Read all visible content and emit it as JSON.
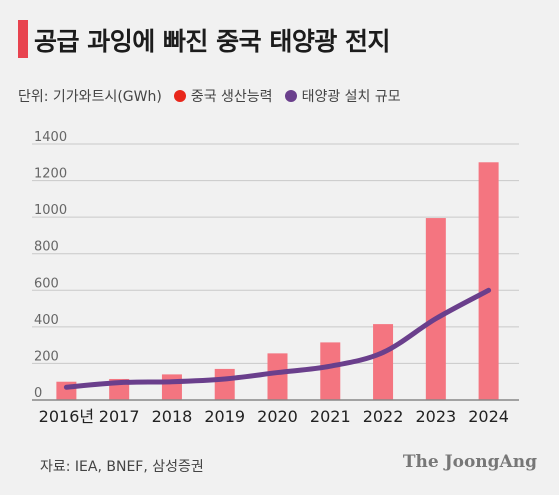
{
  "title": "공급 과잉에 빠진 중국 태양광 전지",
  "unit_label": "단위: 기가와트시(GWh)",
  "legend": [
    {
      "label": "중국 생산능력",
      "color": "#e8271b"
    },
    {
      "label": "태양광 설치 규모",
      "color": "#6a3f8c"
    }
  ],
  "source": "자료: IEA, BNEF, 삼성증권",
  "brand": "The JoongAng",
  "colors": {
    "bar": "#f47580",
    "line": "#6a3f8c",
    "grid": "#c9c9c9",
    "axis": "#888888"
  },
  "chart_data": {
    "type": "bar",
    "categories": [
      "2016년",
      "2017",
      "2018",
      "2019",
      "2020",
      "2021",
      "2022",
      "2023",
      "2024"
    ],
    "ylim": [
      0,
      1400
    ],
    "yticks": [
      0,
      200,
      400,
      600,
      800,
      1000,
      1200,
      1400
    ],
    "series": [
      {
        "name": "중국 생산능력",
        "type": "bar",
        "values": [
          100,
          115,
          140,
          170,
          255,
          315,
          415,
          995,
          1300
        ]
      },
      {
        "name": "태양광 설치 규모",
        "type": "line",
        "values": [
          70,
          95,
          100,
          115,
          150,
          185,
          260,
          445,
          600
        ]
      }
    ],
    "grid": true
  }
}
